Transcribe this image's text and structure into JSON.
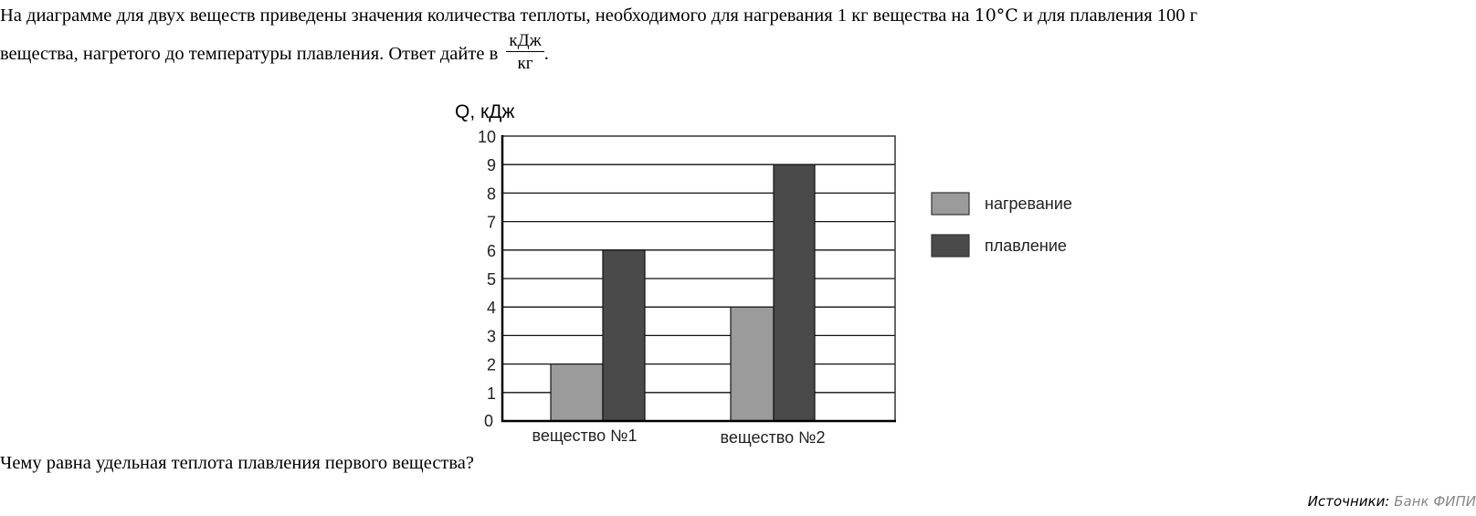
{
  "problem": {
    "text_line1_a": "На диаграмме для двух веществ приведены значения количества теплоты, необходимого для нагревания 1 кг вещества на ",
    "temp": "10°C",
    "text_line1_b": " и для плавления 100 г",
    "text_line2": "вещества, нагретого до температуры плавления. Ответ дайте в ",
    "unit_num": "кДж",
    "unit_den": "кг",
    "text_line2_end": "."
  },
  "question": "Чему равна удельная теплота плавления первого вещества?",
  "source": {
    "label": "Источники:",
    "link": "Банк ФИПИ"
  },
  "chart_data": {
    "type": "bar",
    "title": "",
    "ylabel": "Q, кДж",
    "xlabel": "",
    "ylim": [
      0,
      10
    ],
    "yticks": [
      "0",
      "1",
      "2",
      "3",
      "4",
      "5",
      "6",
      "7",
      "8",
      "9",
      "10"
    ],
    "grid": true,
    "legend_position": "right",
    "categories": [
      "вещество №1",
      "вещество №2"
    ],
    "series": [
      {
        "name": "нагревание",
        "color": "#9b9b9b",
        "values": [
          2,
          4
        ]
      },
      {
        "name": "плавление",
        "color": "#4a4a4a",
        "values": [
          6,
          9
        ]
      }
    ]
  }
}
